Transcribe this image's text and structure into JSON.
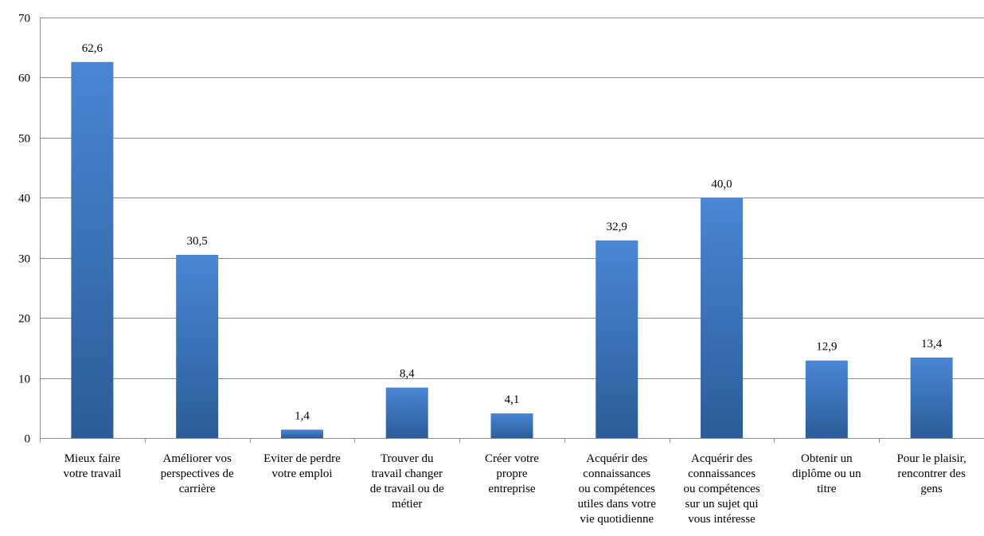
{
  "chart_data": {
    "type": "bar",
    "title": "",
    "xlabel": "",
    "ylabel": "",
    "ylim": [
      0,
      70
    ],
    "yticks": [
      0,
      10,
      20,
      30,
      40,
      50,
      60,
      70
    ],
    "grid": true,
    "categories": [
      [
        "Mieux faire",
        "votre travail"
      ],
      [
        "Améliorer vos",
        "perspectives de",
        "carrière"
      ],
      [
        "Eviter de perdre",
        "votre emploi"
      ],
      [
        "Trouver du",
        "travail changer",
        "de travail ou de",
        "métier"
      ],
      [
        "Créer votre",
        "propre",
        "entreprise"
      ],
      [
        "Acquérir des",
        "connaissances",
        "ou compétences",
        "utiles dans votre",
        "vie quotidienne"
      ],
      [
        "Acquérir des",
        "connaissances",
        "ou compétences",
        "sur un sujet qui",
        "vous intéresse"
      ],
      [
        "Obtenir un",
        "diplôme ou un",
        "titre"
      ],
      [
        "Pour le plaisir,",
        "rencontrer des",
        "gens"
      ]
    ],
    "values": [
      62.6,
      30.5,
      1.4,
      8.4,
      4.1,
      32.9,
      40.0,
      12.9,
      13.4
    ],
    "data_labels": [
      "62,6",
      "30,5",
      "1,4",
      "8,4",
      "4,1",
      "32,9",
      "40,0",
      "12,9",
      "13,4"
    ],
    "colors": {
      "bar_top": "#4a86d4",
      "bar_bottom": "#2b5c99",
      "grid": "#8c8c8c"
    }
  }
}
